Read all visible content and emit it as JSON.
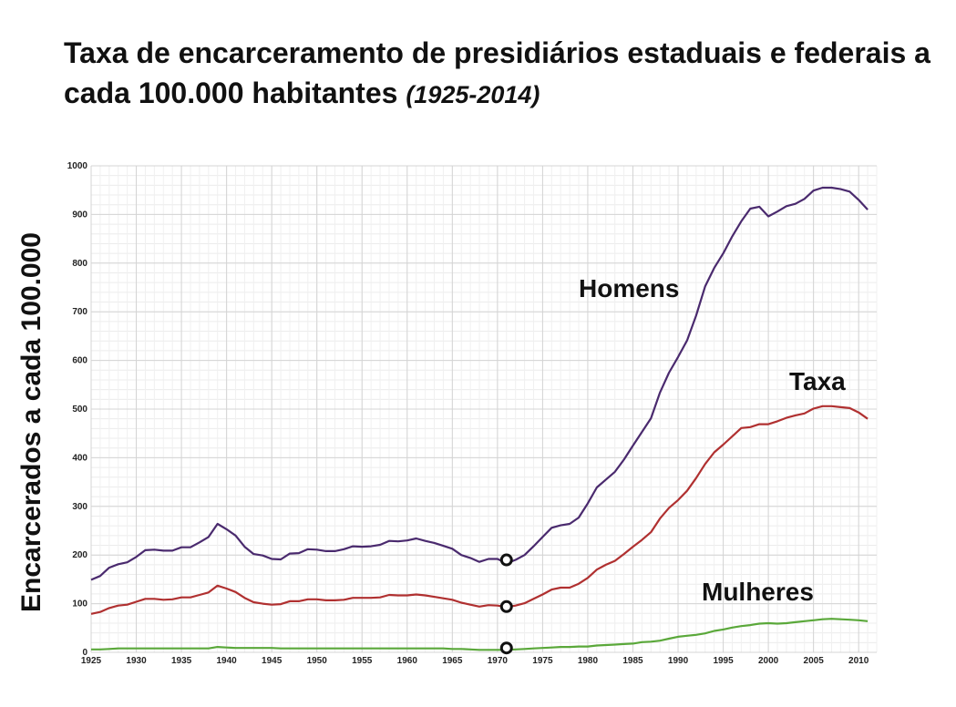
{
  "chart_data": {
    "type": "line",
    "title": "Taxa de encarceramento de presidiários estaduais e federais a cada 100.000 habitantes",
    "subtitle": "(1925-2014)",
    "xlabel": "",
    "ylabel": "Encarcerados a cada 100.000",
    "xlim": [
      1925,
      2012
    ],
    "ylim": [
      0,
      1000
    ],
    "x_ticks": [
      1925,
      1930,
      1935,
      1940,
      1945,
      1950,
      1955,
      1960,
      1965,
      1970,
      1975,
      1980,
      1985,
      1990,
      1995,
      2000,
      2005,
      2010
    ],
    "y_ticks": [
      0,
      100,
      200,
      300,
      400,
      500,
      600,
      700,
      800,
      900,
      1000
    ],
    "grid": true,
    "series": [
      {
        "name": "Homens",
        "color": "#4a2a6e",
        "points": [
          [
            1925,
            149
          ],
          [
            1926,
            157
          ],
          [
            1927,
            174
          ],
          [
            1928,
            181
          ],
          [
            1929,
            185
          ],
          [
            1930,
            196
          ],
          [
            1931,
            210
          ],
          [
            1932,
            211
          ],
          [
            1933,
            209
          ],
          [
            1934,
            209
          ],
          [
            1935,
            216
          ],
          [
            1936,
            216
          ],
          [
            1937,
            226
          ],
          [
            1938,
            237
          ],
          [
            1939,
            264
          ],
          [
            1940,
            253
          ],
          [
            1941,
            240
          ],
          [
            1942,
            217
          ],
          [
            1943,
            202
          ],
          [
            1944,
            199
          ],
          [
            1945,
            192
          ],
          [
            1946,
            191
          ],
          [
            1947,
            203
          ],
          [
            1948,
            204
          ],
          [
            1949,
            212
          ],
          [
            1950,
            211
          ],
          [
            1951,
            208
          ],
          [
            1952,
            208
          ],
          [
            1953,
            212
          ],
          [
            1954,
            218
          ],
          [
            1955,
            217
          ],
          [
            1956,
            218
          ],
          [
            1957,
            221
          ],
          [
            1958,
            229
          ],
          [
            1959,
            228
          ],
          [
            1960,
            230
          ],
          [
            1961,
            234
          ],
          [
            1962,
            229
          ],
          [
            1963,
            225
          ],
          [
            1964,
            219
          ],
          [
            1965,
            213
          ],
          [
            1966,
            200
          ],
          [
            1967,
            194
          ],
          [
            1968,
            186
          ],
          [
            1969,
            192
          ],
          [
            1970,
            192
          ],
          [
            1971,
            183
          ],
          [
            1972,
            190
          ],
          [
            1973,
            200
          ],
          [
            1974,
            218
          ],
          [
            1975,
            237
          ],
          [
            1976,
            256
          ],
          [
            1977,
            261
          ],
          [
            1978,
            264
          ],
          [
            1979,
            277
          ],
          [
            1980,
            306
          ],
          [
            1981,
            339
          ],
          [
            1982,
            355
          ],
          [
            1983,
            371
          ],
          [
            1984,
            396
          ],
          [
            1985,
            425
          ],
          [
            1986,
            453
          ],
          [
            1987,
            481
          ],
          [
            1988,
            534
          ],
          [
            1989,
            575
          ],
          [
            1990,
            607
          ],
          [
            1991,
            641
          ],
          [
            1992,
            692
          ],
          [
            1993,
            752
          ],
          [
            1994,
            790
          ],
          [
            1995,
            820
          ],
          [
            1996,
            855
          ],
          [
            1997,
            886
          ],
          [
            1998,
            912
          ],
          [
            1999,
            916
          ],
          [
            2000,
            896
          ],
          [
            2001,
            906
          ],
          [
            2002,
            917
          ],
          [
            2003,
            922
          ],
          [
            2004,
            932
          ],
          [
            2005,
            949
          ],
          [
            2006,
            955
          ],
          [
            2007,
            955
          ],
          [
            2008,
            952
          ],
          [
            2009,
            947
          ],
          [
            2010,
            930
          ],
          [
            2011,
            910
          ]
        ]
      },
      {
        "name": "Taxa",
        "color": "#b03030",
        "points": [
          [
            1925,
            79
          ],
          [
            1926,
            83
          ],
          [
            1927,
            91
          ],
          [
            1928,
            96
          ],
          [
            1929,
            98
          ],
          [
            1930,
            104
          ],
          [
            1931,
            110
          ],
          [
            1932,
            110
          ],
          [
            1933,
            108
          ],
          [
            1934,
            109
          ],
          [
            1935,
            113
          ],
          [
            1936,
            113
          ],
          [
            1937,
            118
          ],
          [
            1938,
            123
          ],
          [
            1939,
            137
          ],
          [
            1940,
            131
          ],
          [
            1941,
            124
          ],
          [
            1942,
            112
          ],
          [
            1943,
            103
          ],
          [
            1944,
            100
          ],
          [
            1945,
            98
          ],
          [
            1946,
            99
          ],
          [
            1947,
            105
          ],
          [
            1948,
            105
          ],
          [
            1949,
            109
          ],
          [
            1950,
            109
          ],
          [
            1951,
            107
          ],
          [
            1952,
            107
          ],
          [
            1953,
            108
          ],
          [
            1954,
            112
          ],
          [
            1955,
            112
          ],
          [
            1956,
            112
          ],
          [
            1957,
            113
          ],
          [
            1958,
            118
          ],
          [
            1959,
            117
          ],
          [
            1960,
            117
          ],
          [
            1961,
            119
          ],
          [
            1962,
            117
          ],
          [
            1963,
            114
          ],
          [
            1964,
            111
          ],
          [
            1965,
            108
          ],
          [
            1966,
            102
          ],
          [
            1967,
            98
          ],
          [
            1968,
            94
          ],
          [
            1969,
            97
          ],
          [
            1970,
            96
          ],
          [
            1971,
            93
          ],
          [
            1972,
            96
          ],
          [
            1973,
            101
          ],
          [
            1974,
            110
          ],
          [
            1975,
            119
          ],
          [
            1976,
            129
          ],
          [
            1977,
            133
          ],
          [
            1978,
            133
          ],
          [
            1979,
            141
          ],
          [
            1980,
            153
          ],
          [
            1981,
            170
          ],
          [
            1982,
            180
          ],
          [
            1983,
            188
          ],
          [
            1984,
            202
          ],
          [
            1985,
            217
          ],
          [
            1986,
            231
          ],
          [
            1987,
            247
          ],
          [
            1988,
            275
          ],
          [
            1989,
            297
          ],
          [
            1990,
            313
          ],
          [
            1991,
            332
          ],
          [
            1992,
            358
          ],
          [
            1993,
            387
          ],
          [
            1994,
            411
          ],
          [
            1995,
            427
          ],
          [
            1996,
            444
          ],
          [
            1997,
            461
          ],
          [
            1998,
            463
          ],
          [
            1999,
            469
          ],
          [
            2000,
            469
          ],
          [
            2001,
            475
          ],
          [
            2002,
            482
          ],
          [
            2003,
            487
          ],
          [
            2004,
            491
          ],
          [
            2005,
            501
          ],
          [
            2006,
            506
          ],
          [
            2007,
            506
          ],
          [
            2008,
            504
          ],
          [
            2009,
            502
          ],
          [
            2010,
            493
          ],
          [
            2011,
            480
          ]
        ]
      },
      {
        "name": "Mulheres",
        "color": "#5aa83a",
        "points": [
          [
            1925,
            6
          ],
          [
            1926,
            6
          ],
          [
            1927,
            7
          ],
          [
            1928,
            8
          ],
          [
            1929,
            8
          ],
          [
            1930,
            8
          ],
          [
            1931,
            8
          ],
          [
            1932,
            8
          ],
          [
            1933,
            8
          ],
          [
            1934,
            8
          ],
          [
            1935,
            8
          ],
          [
            1936,
            8
          ],
          [
            1937,
            8
          ],
          [
            1938,
            8
          ],
          [
            1939,
            11
          ],
          [
            1940,
            10
          ],
          [
            1941,
            9
          ],
          [
            1942,
            9
          ],
          [
            1943,
            9
          ],
          [
            1944,
            9
          ],
          [
            1945,
            9
          ],
          [
            1946,
            8
          ],
          [
            1947,
            8
          ],
          [
            1948,
            8
          ],
          [
            1949,
            8
          ],
          [
            1950,
            8
          ],
          [
            1951,
            8
          ],
          [
            1952,
            8
          ],
          [
            1953,
            8
          ],
          [
            1954,
            8
          ],
          [
            1955,
            8
          ],
          [
            1956,
            8
          ],
          [
            1957,
            8
          ],
          [
            1958,
            8
          ],
          [
            1959,
            8
          ],
          [
            1960,
            8
          ],
          [
            1961,
            8
          ],
          [
            1962,
            8
          ],
          [
            1963,
            8
          ],
          [
            1964,
            8
          ],
          [
            1965,
            7
          ],
          [
            1966,
            7
          ],
          [
            1967,
            6
          ],
          [
            1968,
            5
          ],
          [
            1969,
            5
          ],
          [
            1970,
            5
          ],
          [
            1971,
            5
          ],
          [
            1972,
            6
          ],
          [
            1973,
            7
          ],
          [
            1974,
            8
          ],
          [
            1975,
            9
          ],
          [
            1976,
            10
          ],
          [
            1977,
            11
          ],
          [
            1978,
            11
          ],
          [
            1979,
            12
          ],
          [
            1980,
            12
          ],
          [
            1981,
            14
          ],
          [
            1982,
            15
          ],
          [
            1983,
            16
          ],
          [
            1984,
            17
          ],
          [
            1985,
            18
          ],
          [
            1986,
            21
          ],
          [
            1987,
            22
          ],
          [
            1988,
            24
          ],
          [
            1989,
            28
          ],
          [
            1990,
            32
          ],
          [
            1991,
            34
          ],
          [
            1992,
            36
          ],
          [
            1993,
            39
          ],
          [
            1994,
            44
          ],
          [
            1995,
            47
          ],
          [
            1996,
            51
          ],
          [
            1997,
            54
          ],
          [
            1998,
            56
          ],
          [
            1999,
            59
          ],
          [
            2000,
            60
          ],
          [
            2001,
            59
          ],
          [
            2002,
            60
          ],
          [
            2003,
            62
          ],
          [
            2004,
            64
          ],
          [
            2005,
            66
          ],
          [
            2006,
            68
          ],
          [
            2007,
            69
          ],
          [
            2008,
            68
          ],
          [
            2009,
            67
          ],
          [
            2010,
            66
          ],
          [
            2011,
            64
          ]
        ]
      }
    ],
    "annotations": [
      {
        "series": "Homens",
        "x": 1971,
        "y": 190
      },
      {
        "series": "Taxa",
        "x": 1971,
        "y": 94
      },
      {
        "series": "Mulheres",
        "x": 1971,
        "y": 9
      }
    ]
  }
}
